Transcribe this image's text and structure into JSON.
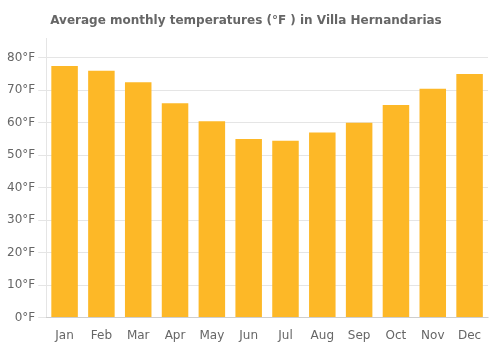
{
  "chart_data": {
    "type": "bar",
    "title": "Average monthly temperatures (°F ) in Villa Hernandarias",
    "categories": [
      "Jan",
      "Feb",
      "Mar",
      "Apr",
      "May",
      "Jun",
      "Jul",
      "Aug",
      "Sep",
      "Oct",
      "Nov",
      "Dec"
    ],
    "values": [
      77.5,
      76,
      72.5,
      66,
      60.5,
      55,
      54.5,
      57,
      60,
      65.5,
      70.5,
      75
    ],
    "color": "#FDB827",
    "ylim": [
      0,
      86
    ],
    "yticks": [
      {
        "value": 0,
        "label": "0°F"
      },
      {
        "value": 10,
        "label": "10°F"
      },
      {
        "value": 20,
        "label": "20°F"
      },
      {
        "value": 30,
        "label": "30°F"
      },
      {
        "value": 40,
        "label": "40°F"
      },
      {
        "value": 50,
        "label": "50°F"
      },
      {
        "value": 60,
        "label": "60°F"
      },
      {
        "value": 70,
        "label": "70°F"
      },
      {
        "value": 80,
        "label": "80°F"
      }
    ],
    "grid": true
  }
}
